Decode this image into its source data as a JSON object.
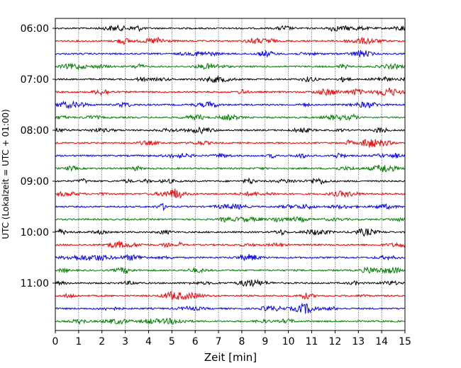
{
  "chart_data": {
    "type": "line",
    "subtype": "helicorder",
    "title": "",
    "xlabel": "Zeit  [min]",
    "ylabel": "UTC (Lokalzeit = UTC + 01:00)",
    "xlim": [
      0,
      15
    ],
    "x_ticks": [
      "0",
      "1",
      "2",
      "3",
      "4",
      "5",
      "6",
      "7",
      "8",
      "9",
      "10",
      "11",
      "12",
      "13",
      "14",
      "15"
    ],
    "y_tick_labels": [
      "06:00",
      "07:00",
      "08:00",
      "09:00",
      "10:00",
      "11:00"
    ],
    "trace_start_times": [
      "06:00",
      "06:15",
      "06:30",
      "06:45",
      "07:00",
      "07:15",
      "07:30",
      "07:45",
      "08:00",
      "08:15",
      "08:30",
      "08:45",
      "09:00",
      "09:15",
      "09:30",
      "09:45",
      "10:00",
      "10:15",
      "10:30",
      "10:45",
      "11:00",
      "11:15",
      "11:30",
      "11:45"
    ],
    "trace_colors_cycle": [
      "#000000",
      "#ff0000",
      "#0000ff",
      "#008000"
    ],
    "minutes_per_trace": 15,
    "x_grid": "dotted vertical lines at each minute",
    "legend": "none"
  }
}
